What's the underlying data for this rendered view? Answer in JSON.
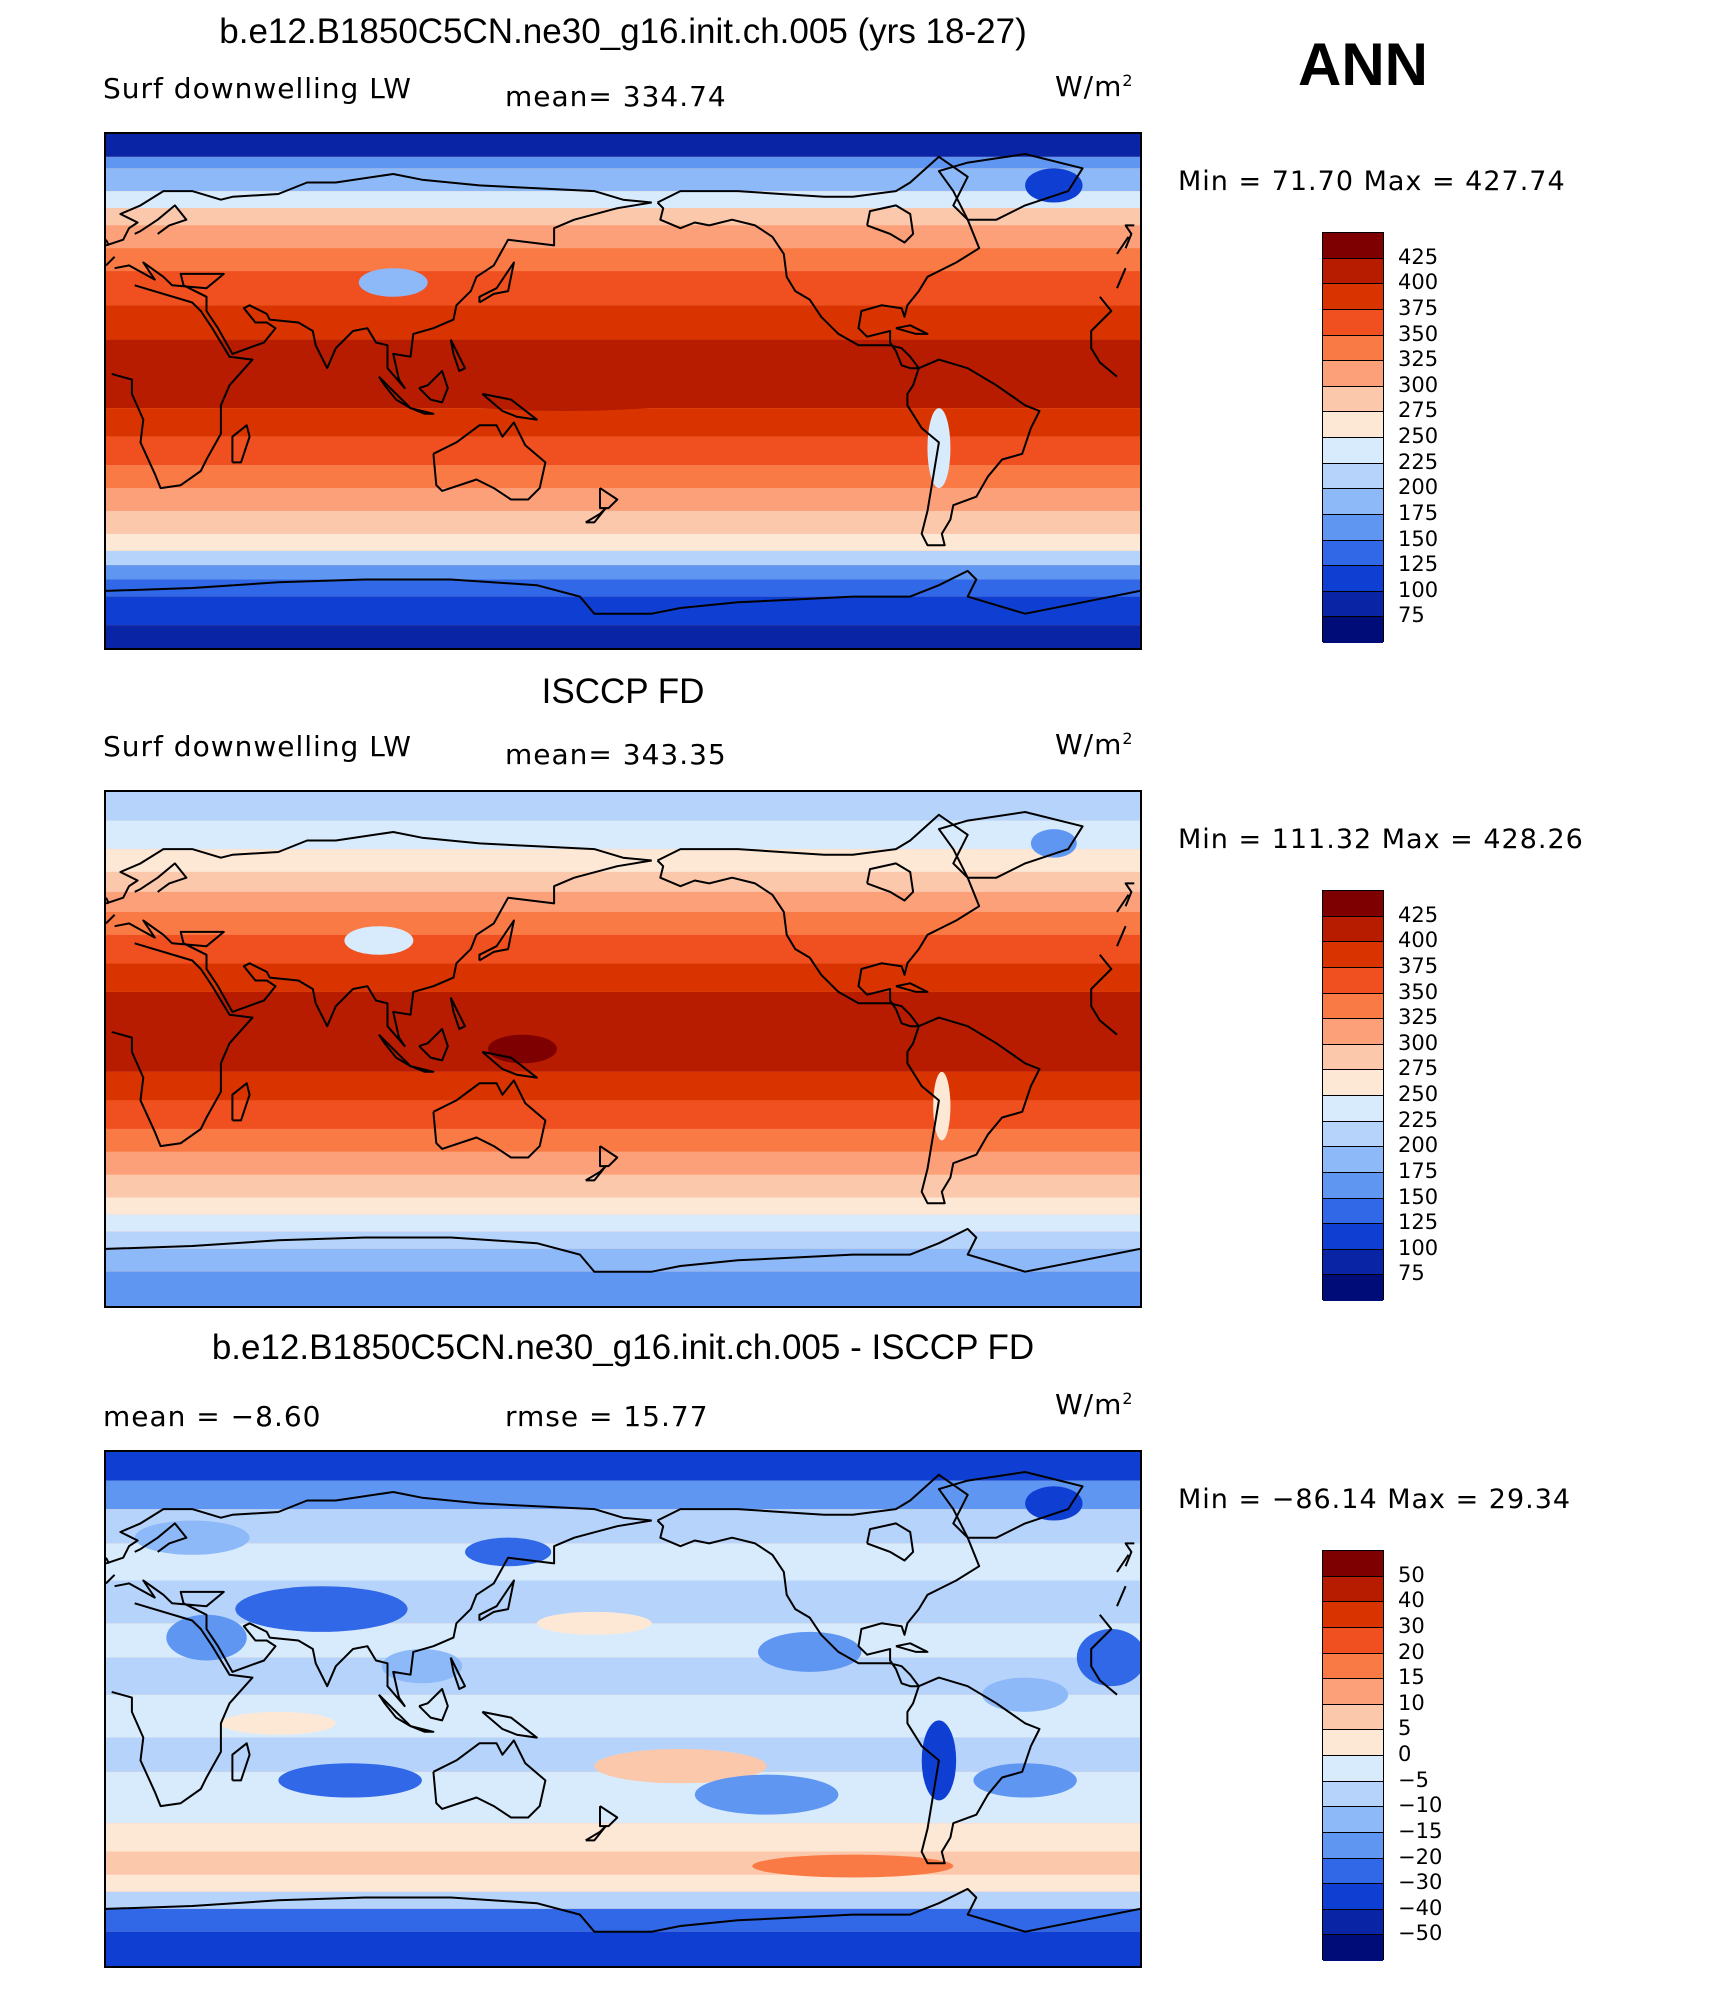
{
  "season": "ANN",
  "unit_base": "W/m",
  "unit_sup": "2",
  "panels": [
    {
      "title": "b.e12.B1850C5CN.ne30_g16.init.ch.005 (yrs 18-27)",
      "left_label": "Surf downwelling LW",
      "center_label": "mean= 334.74",
      "min_max": "Min =  71.70 Max = 427.74",
      "colorbar_labels": [
        "425",
        "400",
        "375",
        "350",
        "325",
        "300",
        "275",
        "250",
        "225",
        "200",
        "175",
        "150",
        "125",
        "100",
        "75"
      ],
      "colorbar_colors": [
        "#7f0000",
        "#b71c00",
        "#d93400",
        "#f05020",
        "#fa7a46",
        "#fca07a",
        "#fcc8ac",
        "#fde8d6",
        "#d8ebfc",
        "#b6d4fb",
        "#8db9f8",
        "#5f96f2",
        "#3168e8",
        "#0f3fd2",
        "#0a24a6",
        "#000c78"
      ],
      "type": "model"
    },
    {
      "title": "ISCCP FD",
      "left_label": "Surf downwelling LW",
      "center_label": "mean= 343.35",
      "min_max": "Min = 111.32 Max = 428.26",
      "colorbar_labels": [
        "425",
        "400",
        "375",
        "350",
        "325",
        "300",
        "275",
        "250",
        "225",
        "200",
        "175",
        "150",
        "125",
        "100",
        "75"
      ],
      "colorbar_colors": [
        "#7f0000",
        "#b71c00",
        "#d93400",
        "#f05020",
        "#fa7a46",
        "#fca07a",
        "#fcc8ac",
        "#fde8d6",
        "#d8ebfc",
        "#b6d4fb",
        "#8db9f8",
        "#5f96f2",
        "#3168e8",
        "#0f3fd2",
        "#0a24a6",
        "#000c78"
      ],
      "type": "obs"
    },
    {
      "title": "b.e12.B1850C5CN.ne30_g16.init.ch.005 - ISCCP FD",
      "left_label": "mean =  −8.60",
      "center_label": "rmse =   15.77",
      "min_max": "Min = −86.14 Max =   29.34",
      "colorbar_labels": [
        "50",
        "40",
        "30",
        "20",
        "15",
        "10",
        "5",
        "0",
        "−5",
        "−10",
        "−15",
        "−20",
        "−30",
        "−40",
        "−50"
      ],
      "colorbar_colors": [
        "#7f0000",
        "#b71c00",
        "#d93400",
        "#f05020",
        "#fa7a46",
        "#fca07a",
        "#fcc8ac",
        "#fde8d6",
        "#d8ebfc",
        "#b6d4fb",
        "#8db9f8",
        "#5f96f2",
        "#3168e8",
        "#0f3fd2",
        "#0a24a6",
        "#000c78"
      ],
      "type": "diff"
    }
  ]
}
